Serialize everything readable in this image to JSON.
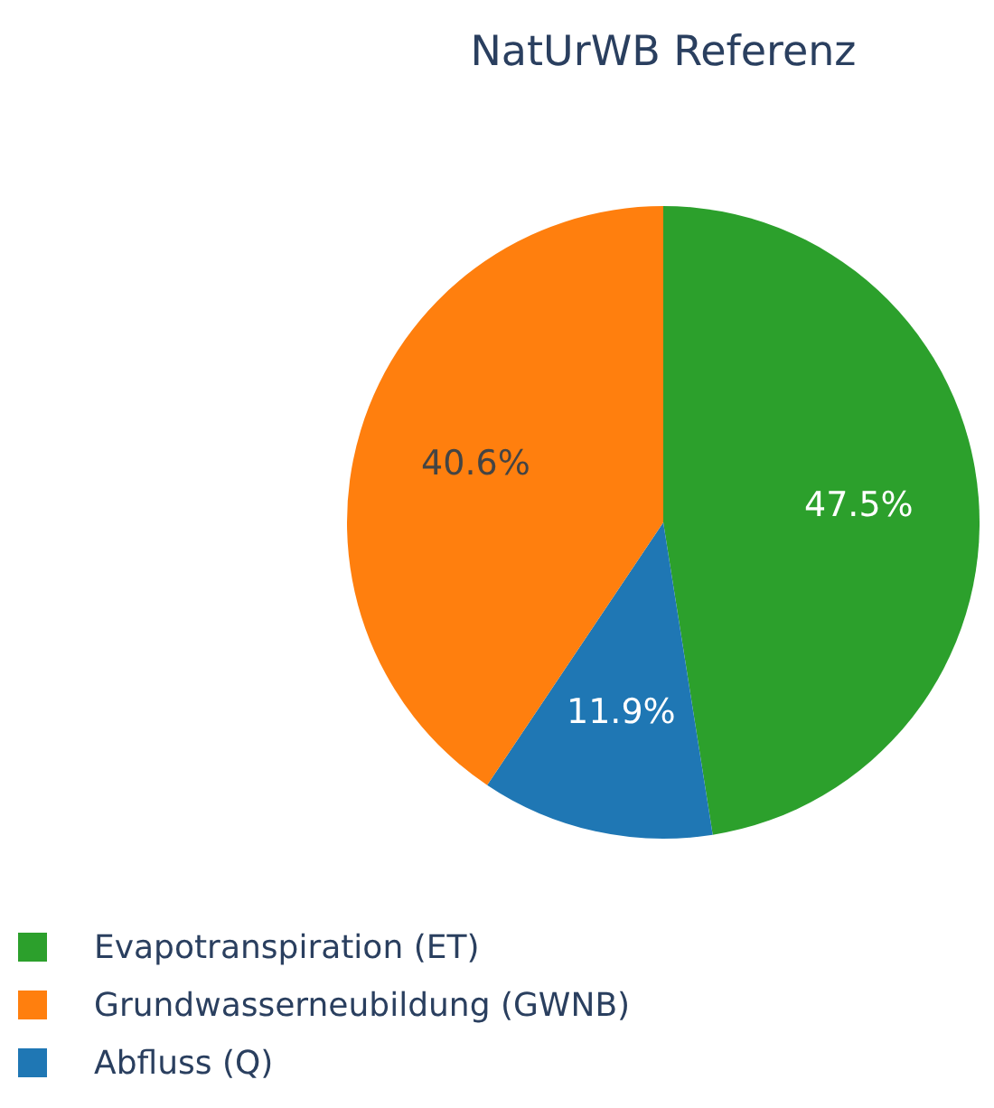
{
  "chart_data": {
    "type": "pie",
    "title": "NatUrWB Referenz",
    "categories": [
      "Evapotranspiration (ET)",
      "Abfluss (Q)",
      "Grundwasserneubildung (GWNB)"
    ],
    "values": [
      47.5,
      11.9,
      40.6
    ],
    "colors": [
      "#2ca02c",
      "#1f77b4",
      "#ff7f0e"
    ],
    "value_labels": [
      "47.5%",
      "11.9%",
      "40.6%"
    ],
    "legend": "bottom left"
  }
}
